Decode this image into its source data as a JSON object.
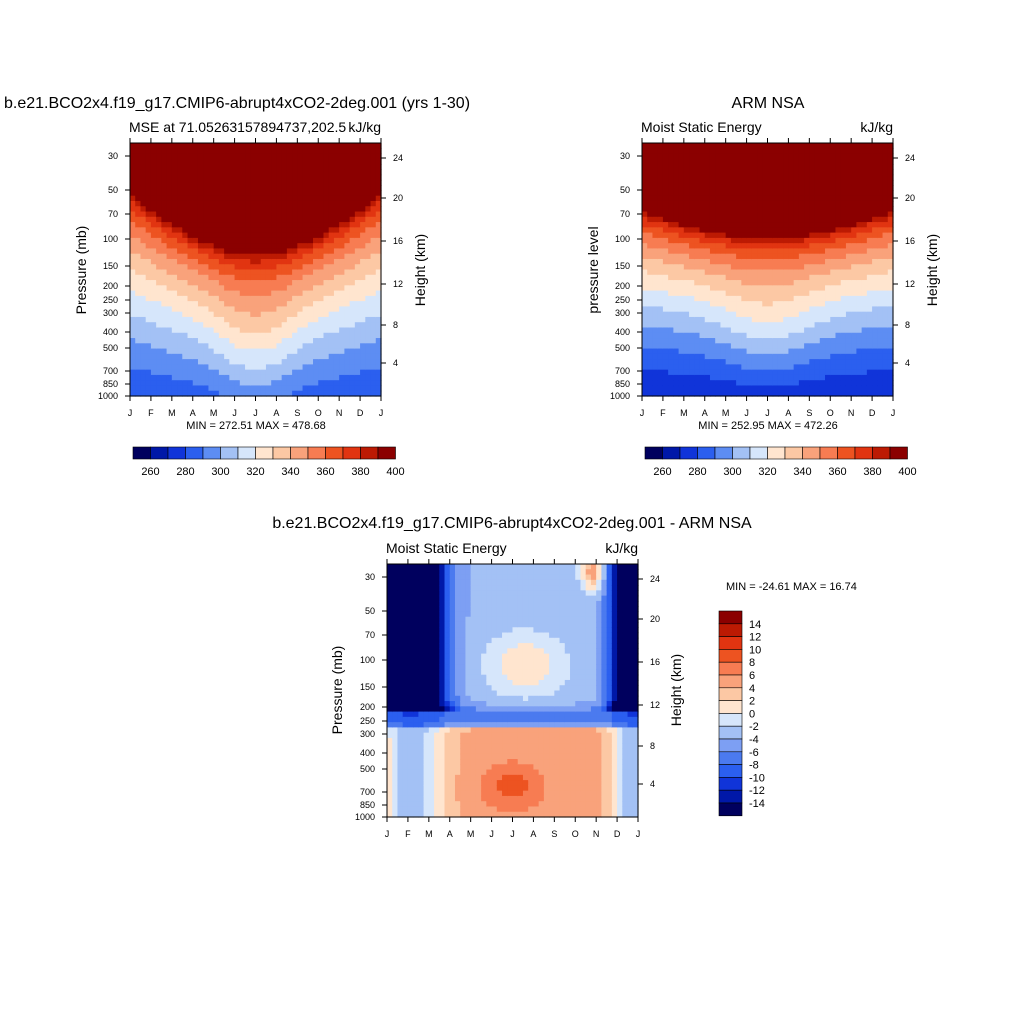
{
  "colors": {
    "seq12": [
      "#00005e",
      "#0018a8",
      "#1034d9",
      "#2b5fef",
      "#5d8df3",
      "#a3c1f5",
      "#d6e6fb",
      "#ffe5cf",
      "#fcc8a4",
      "#f9a27b",
      "#f77c52",
      "#ed5321",
      "#e13411",
      "#bc1a03",
      "#8b0000"
    ],
    "div16": [
      "#00005e",
      "#0018a8",
      "#1034d9",
      "#2b5fef",
      "#4b7aef",
      "#7d9ff3",
      "#a3c1f5",
      "#d6e6fb",
      "#ffe5cf",
      "#fcc8a4",
      "#f9a27b",
      "#f77c52",
      "#ed5321",
      "#e13411",
      "#bc1a03",
      "#8b0000"
    ]
  },
  "chart_data": [
    {
      "id": "model",
      "type": "heatmap",
      "title": "b.e21.BCO2x4.f19_g17.CMIP6-abrupt4xCO2-2deg.001 (yrs 1-30)",
      "left_label": "MSE at 71.05263157894737,202.5",
      "right_label": "kJ/kg",
      "ylabel": "Pressure (mb)",
      "ylabel_right": "Height (km)",
      "x_ticks": [
        "J",
        "F",
        "M",
        "A",
        "M",
        "J",
        "J",
        "A",
        "S",
        "O",
        "N",
        "D",
        "J"
      ],
      "y_ticks": [
        "30",
        "50",
        "70",
        "100",
        "150",
        "200",
        "250",
        "300",
        "400",
        "500",
        "700",
        "850",
        "1000"
      ],
      "y_ticks_right": [
        "24",
        "20",
        "16",
        "12",
        "8",
        "4"
      ],
      "minmax": "MIN = 272.51 MAX = 478.68",
      "colorbar_labels": [
        "260",
        "280",
        "300",
        "320",
        "340",
        "360",
        "380",
        "400"
      ],
      "levels": [
        260,
        270,
        280,
        290,
        300,
        310,
        320,
        330,
        340,
        350,
        360,
        370,
        380,
        390,
        400
      ]
    },
    {
      "id": "obs",
      "type": "heatmap",
      "title": "ARM NSA",
      "left_label": "Moist Static Energy",
      "right_label": "kJ/kg",
      "ylabel": "pressure level",
      "ylabel_right": "Height (km)",
      "x_ticks": [
        "J",
        "F",
        "M",
        "A",
        "M",
        "J",
        "J",
        "A",
        "S",
        "O",
        "N",
        "D",
        "J"
      ],
      "y_ticks": [
        "30",
        "50",
        "70",
        "100",
        "150",
        "200",
        "250",
        "300",
        "400",
        "500",
        "700",
        "850",
        "1000"
      ],
      "y_ticks_right": [
        "24",
        "20",
        "16",
        "12",
        "8",
        "4"
      ],
      "minmax": "MIN = 252.95 MAX = 472.26",
      "colorbar_labels": [
        "260",
        "280",
        "300",
        "320",
        "340",
        "360",
        "380",
        "400"
      ],
      "levels": [
        260,
        270,
        280,
        290,
        300,
        310,
        320,
        330,
        340,
        350,
        360,
        370,
        380,
        390,
        400
      ]
    },
    {
      "id": "diff",
      "type": "heatmap",
      "title": "b.e21.BCO2x4.f19_g17.CMIP6-abrupt4xCO2-2deg.001 - ARM NSA",
      "left_label": "Moist Static Energy",
      "right_label": "kJ/kg",
      "ylabel": "Pressure (mb)",
      "ylabel_right": "Height (km)",
      "x_ticks": [
        "J",
        "F",
        "M",
        "A",
        "M",
        "J",
        "J",
        "A",
        "S",
        "O",
        "N",
        "D",
        "J"
      ],
      "y_ticks": [
        "30",
        "50",
        "70",
        "100",
        "150",
        "200",
        "250",
        "300",
        "400",
        "500",
        "700",
        "850",
        "1000"
      ],
      "y_ticks_right": [
        "24",
        "20",
        "16",
        "12",
        "8",
        "4"
      ],
      "minmax": "MIN = -24.61 MAX =  16.74",
      "colorbar_labels": [
        "14",
        "12",
        "10",
        "8",
        "6",
        "4",
        "2",
        "0",
        "-2",
        "-4",
        "-6",
        "-8",
        "-10",
        "-12",
        "-14"
      ],
      "levels": [
        -14,
        -12,
        -10,
        -8,
        -6,
        -4,
        -2,
        0,
        2,
        4,
        6,
        8,
        10,
        12,
        14
      ]
    }
  ]
}
